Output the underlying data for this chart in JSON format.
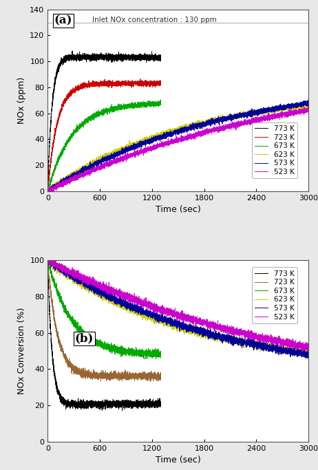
{
  "title_a": "(a)",
  "title_b": "(b)",
  "annotation_a": "Inlet NOx concentration : 130 ppm",
  "xlabel": "Time (sec)",
  "ylabel_a": "NOx (ppm)",
  "ylabel_b": "NOx Conversion (%)",
  "xlim": [
    0,
    3000
  ],
  "ylim_a": [
    0,
    140
  ],
  "ylim_b": [
    0,
    100
  ],
  "yticks_a": [
    0,
    20,
    40,
    60,
    80,
    100,
    120,
    140
  ],
  "yticks_b": [
    0,
    20,
    40,
    60,
    80,
    100
  ],
  "xticks": [
    0,
    600,
    1200,
    1800,
    2400,
    3000
  ],
  "inlet_nox": 130,
  "hline_y": 130,
  "temperatures": [
    "773 K",
    "723 K",
    "673 K",
    "623 K",
    "573 K",
    "523 K"
  ],
  "colors_a": [
    "#000000",
    "#cc0000",
    "#00aa00",
    "#cccc00",
    "#000099",
    "#cc00cc"
  ],
  "colors_b": [
    "#000000",
    "#996633",
    "#00aa00",
    "#cccc00",
    "#000099",
    "#cc00cc"
  ],
  "linewidth": 0.7,
  "fig_width": 4.62,
  "fig_height": 6.83,
  "dpi": 100,
  "background_color": "#e8e8e8",
  "plot_background": "#ffffff",
  "end_773": 1300,
  "end_723": 1300,
  "end_673": 1300
}
